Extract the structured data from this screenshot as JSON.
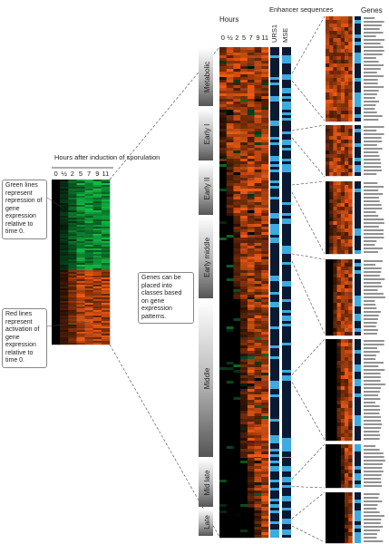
{
  "left_panel": {
    "title": "Hours after induction of sporulation",
    "hours": [
      "0",
      "½",
      "2",
      "5",
      "7",
      "9",
      "11"
    ]
  },
  "callouts": [
    "Green lines represent repression of gene expression relative to time 0.",
    "Genes can be placed into classes based on gene expression patterns.",
    "Red lines represent activation of gene expression relative to time 0."
  ],
  "middle_panel": {
    "title": "Hours",
    "hours": [
      "0",
      "½",
      "2",
      "5",
      "7",
      "9",
      "11"
    ],
    "enhancer_title": "Enhancer sequences",
    "enhancers": [
      "URS1",
      "MSE"
    ],
    "classes": [
      "Metabolic",
      "Early I",
      "Early II",
      "Early middle",
      "Middle",
      "Mid late",
      "Late"
    ]
  },
  "genes_title": "Genes"
}
